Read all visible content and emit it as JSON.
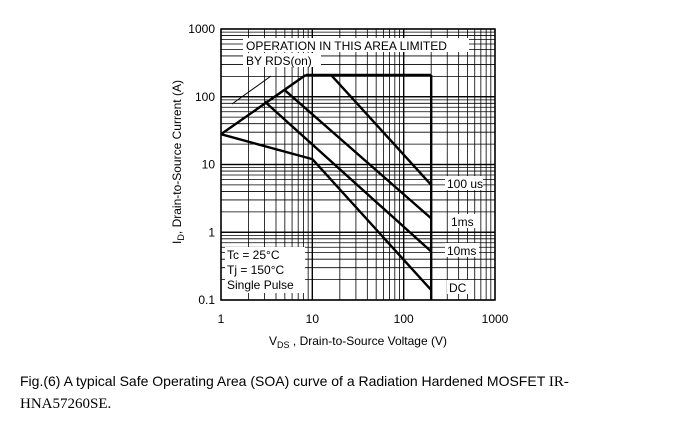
{
  "chart_data": {
    "type": "line",
    "scale": "log-log",
    "xlim": [
      1,
      1000
    ],
    "ylim": [
      0.1,
      1000
    ],
    "grid": true,
    "x_ticks": [
      "1",
      "10",
      "100",
      "1000"
    ],
    "y_ticks": [
      "1000",
      "100",
      "10",
      "1",
      "0.1"
    ],
    "ylabel_main": "I",
    "ylabel_sub": "D",
    "ylabel_rest": ", Drain-to-Source Current (A)",
    "xlabel_main": "V",
    "xlabel_sub": "DS",
    "xlabel_rest": " , Drain-to-Source Voltage (V)",
    "annotation_region_line1": "OPERATION IN THIS AREA LIMITED",
    "annotation_region_line2": "BY RDS(on)",
    "conditions": [
      "Tc = 25°C",
      "Tj = 150°C",
      "Single Pulse"
    ],
    "rds_on_limit": {
      "x": [
        1,
        8.5
      ],
      "y": [
        28,
        210
      ]
    },
    "current_limit": {
      "x": [
        8.5,
        200
      ],
      "y": [
        210,
        210
      ]
    },
    "voltage_limit": {
      "x": [
        200,
        200
      ],
      "y": [
        0.1,
        210
      ]
    },
    "series": [
      {
        "name": "100us",
        "label": "100 us",
        "x": [
          16,
          200
        ],
        "y": [
          210,
          5.0
        ]
      },
      {
        "name": "1ms",
        "label": "1ms",
        "x": [
          5,
          200
        ],
        "y": [
          125,
          1.6
        ]
      },
      {
        "name": "10ms",
        "label": "10ms",
        "x": [
          3,
          200
        ],
        "y": [
          85,
          0.52
        ]
      },
      {
        "name": "DC",
        "label": "DC",
        "x": [
          1,
          10,
          200
        ],
        "y": [
          28,
          12,
          0.14
        ]
      }
    ]
  },
  "caption": {
    "sans_part": "Fig.(6) A typical Safe Operating Area (SOA) curve of a Radiation Hardened MOSFET ",
    "serif_part": "IR-HNA57260SE."
  }
}
